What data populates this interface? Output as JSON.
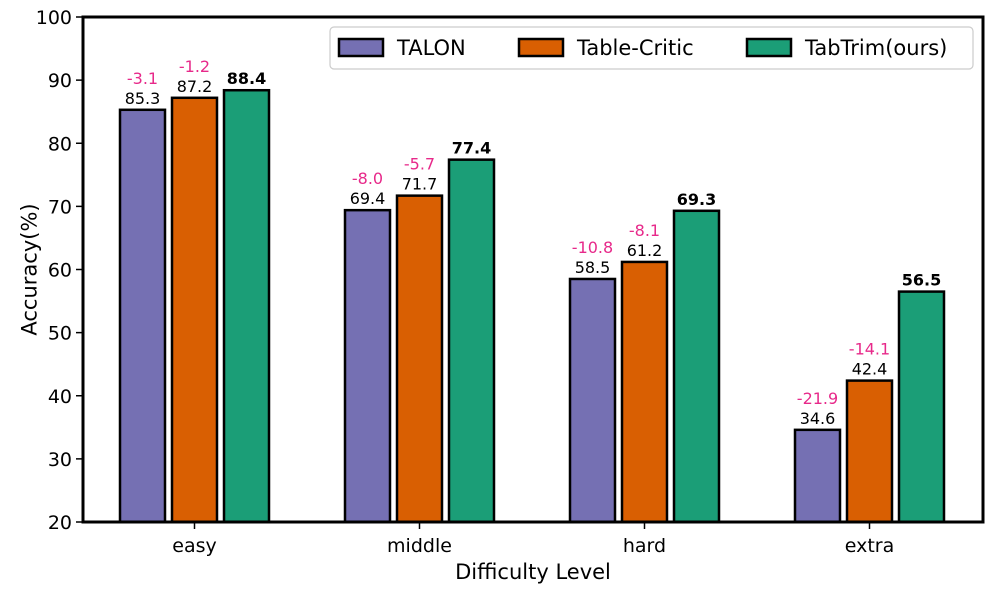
{
  "chart_data": {
    "type": "bar",
    "xlabel": "Difficulty Level",
    "ylabel": "Accuracy(%)",
    "ylim": [
      20,
      100
    ],
    "yticks": [
      20,
      30,
      40,
      50,
      60,
      70,
      80,
      90,
      100
    ],
    "categories": [
      "easy",
      "middle",
      "hard",
      "extra"
    ],
    "legend_position": "top-right",
    "series": [
      {
        "name": "TALON",
        "color": "#7570b3",
        "values": [
          85.3,
          69.4,
          58.5,
          34.6
        ],
        "value_labels": [
          "85.3",
          "69.4",
          "58.5",
          "34.6"
        ],
        "diff_labels": [
          "-3.1",
          "-8.0",
          "-10.8",
          "-21.9"
        ],
        "bold": false
      },
      {
        "name": "Table-Critic",
        "color": "#d95f02",
        "values": [
          87.2,
          71.7,
          61.2,
          42.4
        ],
        "value_labels": [
          "87.2",
          "71.7",
          "61.2",
          "42.4"
        ],
        "diff_labels": [
          "-1.2",
          "-5.7",
          "-8.1",
          "-14.1"
        ],
        "bold": false
      },
      {
        "name": "TabTrim(ours)",
        "color": "#1b9e77",
        "values": [
          88.4,
          77.4,
          69.3,
          56.5
        ],
        "value_labels": [
          "88.4",
          "77.4",
          "69.3",
          "56.5"
        ],
        "diff_labels": [],
        "bold": true
      }
    ],
    "diff_color": "#e7298a"
  }
}
